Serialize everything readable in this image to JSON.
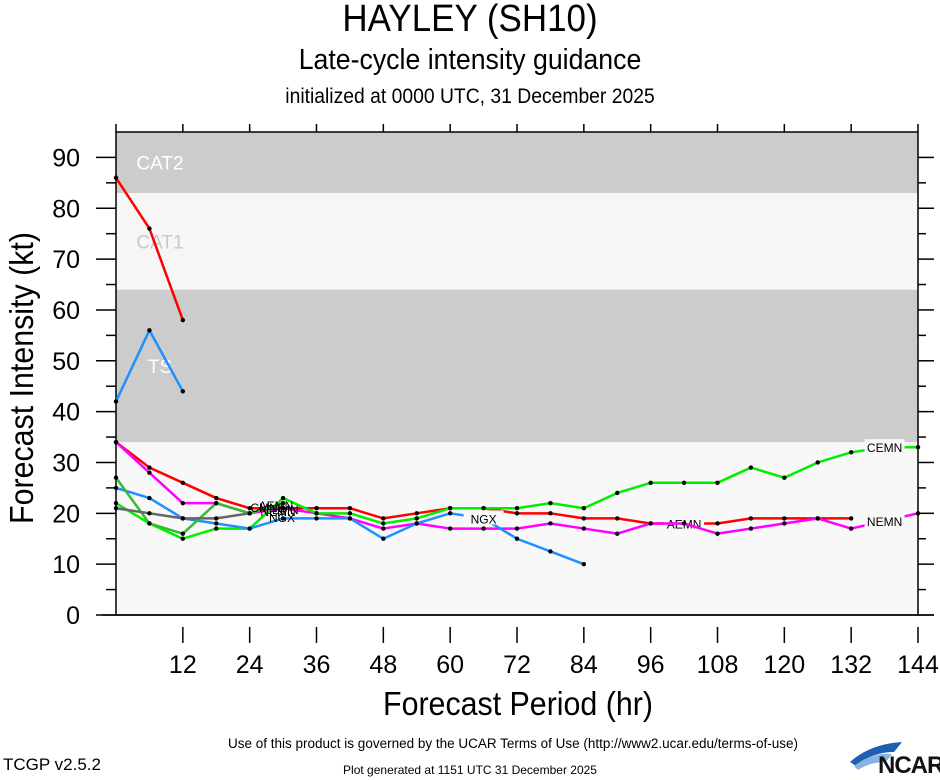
{
  "header": {
    "title": "HAYLEY (SH10)",
    "subtitle": "Late-cycle intensity guidance",
    "initialized": "initialized at 0000 UTC, 31 December 2025"
  },
  "footer": {
    "terms": "Use of this product is governed by the UCAR Terms of Use (http://www2.ucar.edu/terms-of-use)",
    "version": "TCGP v2.5.2",
    "generated": "Plot generated at 1151 UTC   31 December 2025",
    "logo_text": "NCAR"
  },
  "chart_data": {
    "type": "line",
    "title": "HAYLEY (SH10)",
    "subtitle": "Late-cycle intensity guidance",
    "xlabel": "Forecast Period (hr)",
    "ylabel": "Forecast Intensity (kt)",
    "xlim": [
      0,
      144
    ],
    "ylim": [
      0,
      95
    ],
    "xticks": [
      12,
      24,
      36,
      48,
      60,
      72,
      84,
      96,
      108,
      120,
      132,
      144
    ],
    "yticks": [
      0,
      10,
      20,
      30,
      40,
      50,
      60,
      70,
      80,
      90
    ],
    "grid": false,
    "bands": [
      {
        "label": "TS",
        "from": 34,
        "to": 64,
        "color": "#cccccc",
        "label_color": "#ffffff",
        "label_y": 49
      },
      {
        "label": "CAT1",
        "from": 64,
        "to": 83,
        "color": "#f6f6f6",
        "label_color": "#c8c8c8",
        "label_y": 73.5
      },
      {
        "label": "CAT2",
        "from": 83,
        "to": 95,
        "color": "#cccccc",
        "label_color": "#ffffff",
        "label_y": 89
      }
    ],
    "background_color": "#f8f8f8",
    "series": [
      {
        "name": "red-early",
        "label": "",
        "color": "#ff0000",
        "x": [
          0,
          6,
          12
        ],
        "y": [
          86,
          76,
          58
        ]
      },
      {
        "name": "blue-early",
        "label": "",
        "color": "#1e90ff",
        "x": [
          0,
          6,
          12
        ],
        "y": [
          42,
          56,
          44
        ]
      },
      {
        "name": "AEMN",
        "label": "AEMN",
        "label_at": 102,
        "color": "#ff0000",
        "x": [
          0,
          6,
          12,
          18,
          24,
          30,
          36,
          42,
          48,
          54,
          60,
          66,
          72,
          78,
          84,
          90,
          96,
          102,
          108,
          114,
          120,
          126,
          132
        ],
        "y": [
          34,
          29,
          26,
          23,
          21,
          21,
          21,
          21,
          19,
          20,
          21,
          21,
          20,
          20,
          19,
          19,
          18,
          18,
          18,
          19,
          19,
          19,
          19
        ]
      },
      {
        "name": "NEMN",
        "label": "NEMN",
        "label_at": 138,
        "color": "#ff00ff",
        "x": [
          0,
          6,
          12,
          18,
          24,
          30,
          36,
          42,
          48,
          54,
          60,
          66,
          72,
          78,
          84,
          90,
          96,
          102,
          108,
          114,
          120,
          126,
          132,
          138,
          144
        ],
        "y": [
          34,
          28,
          22,
          22,
          20,
          21,
          20,
          19,
          17,
          18,
          17,
          17,
          17,
          18,
          17,
          16,
          18,
          18,
          16,
          17,
          18,
          19,
          17,
          18.5,
          20
        ]
      },
      {
        "name": "CEMN",
        "label": "CEMN",
        "label_at": 138,
        "color": "#00ee00",
        "x": [
          0,
          6,
          12,
          18,
          24,
          30,
          36,
          42,
          48,
          54,
          60,
          66,
          72,
          78,
          84,
          90,
          96,
          102,
          108,
          114,
          120,
          126,
          132,
          138,
          144
        ],
        "y": [
          22,
          18,
          15,
          17,
          17,
          23,
          20,
          20,
          18,
          19,
          21,
          21,
          21,
          22,
          21,
          24,
          26,
          26,
          26,
          29,
          27,
          30,
          32,
          33,
          33
        ]
      },
      {
        "name": "NGX",
        "label": "NGX",
        "label_at": 66,
        "color": "#1e90ff",
        "x": [
          0,
          6,
          12,
          18,
          24,
          30,
          36,
          42,
          48,
          54,
          60,
          66,
          72,
          78,
          84
        ],
        "y": [
          25,
          23,
          19,
          18,
          17,
          19,
          19,
          19,
          15,
          18,
          20,
          19,
          15,
          12.5,
          10
        ]
      },
      {
        "name": "CMNE",
        "label": "",
        "color": "#33bb33",
        "x": [
          0,
          6,
          12,
          18,
          24,
          30
        ],
        "y": [
          27,
          18,
          16,
          22,
          20,
          22
        ]
      },
      {
        "name": "gray",
        "label": "",
        "color": "#666666",
        "x": [
          0,
          6,
          12,
          18,
          24
        ],
        "y": [
          21,
          20,
          19,
          19,
          20
        ]
      }
    ],
    "annotations": [
      "CMNE",
      "AEMN",
      "CEMN",
      "NEMN",
      "NGX"
    ]
  }
}
